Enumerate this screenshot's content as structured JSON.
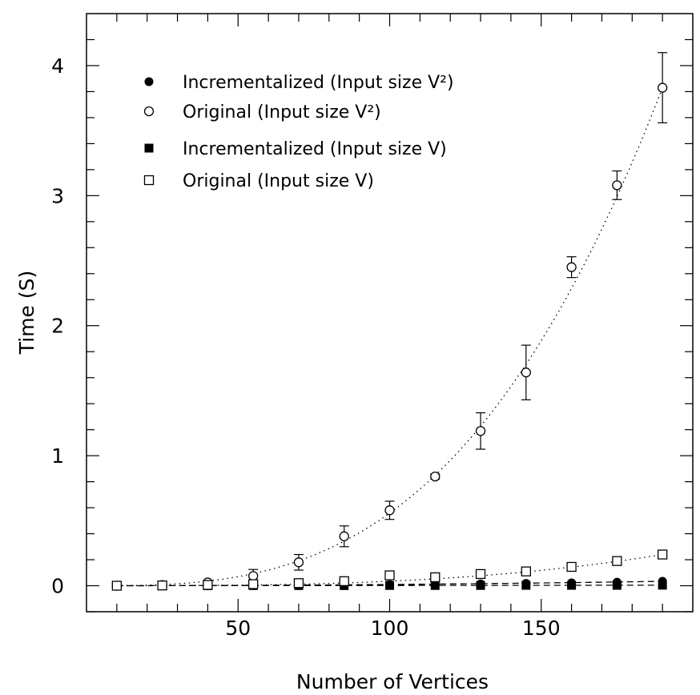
{
  "chart_data": {
    "type": "scatter",
    "xlabel": "Number of Vertices",
    "ylabel": "Time (S)",
    "xlim": [
      0,
      200
    ],
    "ylim": [
      -0.2,
      4.4
    ],
    "x_ticks": [
      50,
      100,
      150
    ],
    "y_ticks": [
      0,
      1,
      2,
      3,
      4
    ],
    "grid": false,
    "legend_position": "top-left",
    "series": [
      {
        "name": "Incrementalized (Input size V²)",
        "marker": "filled-circle",
        "fit_line": "dashed",
        "x": [
          10,
          25,
          40,
          55,
          70,
          85,
          100,
          115,
          130,
          145,
          160,
          175,
          190
        ],
        "y": [
          0.0,
          0.001,
          0.002,
          0.003,
          0.004,
          0.006,
          0.008,
          0.01,
          0.014,
          0.018,
          0.022,
          0.027,
          0.034
        ]
      },
      {
        "name": "Original (Input size V²)",
        "marker": "open-circle",
        "fit_line": "dotted",
        "x": [
          10,
          25,
          40,
          55,
          70,
          85,
          100,
          115,
          130,
          145,
          160,
          175,
          190
        ],
        "y": [
          0.0,
          0.005,
          0.025,
          0.075,
          0.18,
          0.38,
          0.58,
          0.84,
          1.19,
          1.64,
          2.45,
          3.08,
          3.83
        ],
        "error": [
          0.0,
          0.0,
          0.0,
          0.05,
          0.06,
          0.08,
          0.07,
          0.02,
          0.14,
          0.21,
          0.08,
          0.11,
          0.27
        ]
      },
      {
        "name": "Incrementalized (Input size V)",
        "marker": "filled-square",
        "fit_line": "dashed",
        "x": [
          10,
          25,
          40,
          55,
          70,
          85,
          100,
          115,
          130,
          145,
          160,
          175,
          190
        ],
        "y": [
          0.0,
          0.0,
          0.0,
          0.001,
          0.001,
          0.001,
          0.002,
          0.002,
          0.002,
          0.003,
          0.003,
          0.003,
          0.004
        ]
      },
      {
        "name": "Original (Input size V)",
        "marker": "open-square",
        "fit_line": "dotted",
        "x": [
          10,
          25,
          40,
          55,
          70,
          85,
          100,
          115,
          130,
          145,
          160,
          175,
          190
        ],
        "y": [
          0.0,
          0.002,
          0.006,
          0.012,
          0.02,
          0.035,
          0.08,
          0.065,
          0.09,
          0.11,
          0.145,
          0.19,
          0.24
        ]
      }
    ]
  }
}
